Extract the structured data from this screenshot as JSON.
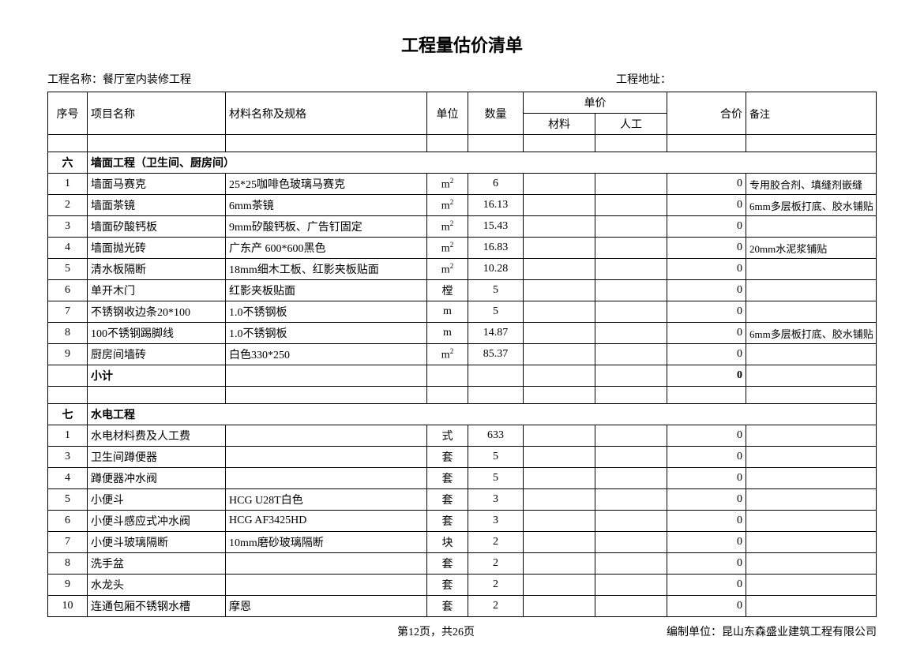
{
  "title": "工程量估价清单",
  "header": {
    "projectLabel": "工程名称：",
    "projectName": "餐厅室内装修工程",
    "addressLabel": "工程地址："
  },
  "columns": {
    "seq": "序号",
    "name": "项目名称",
    "spec": "材料名称及规格",
    "unit": "单位",
    "qty": "数量",
    "price": "单价",
    "mat": "材料",
    "lab": "人工",
    "total": "合价",
    "note": "备注"
  },
  "section6": {
    "num": "六",
    "title": "墙面工程（卫生间、厨房间）",
    "rows": [
      {
        "seq": "1",
        "name": "墙面马赛克",
        "spec": "25*25咖啡色玻璃马赛克",
        "unit": "m²",
        "qty": "6",
        "total": "0",
        "note": "专用胶合剂、填缝剂嵌缝"
      },
      {
        "seq": "2",
        "name": "墙面茶镜",
        "spec": "6mm茶镜",
        "unit": "m²",
        "qty": "16.13",
        "total": "0",
        "note": "6mm多层板打底、胶水铺贴"
      },
      {
        "seq": "3",
        "name": "墙面矽酸钙板",
        "spec": "9mm矽酸钙板、广告钉固定",
        "unit": "m²",
        "qty": "15.43",
        "total": "0",
        "note": ""
      },
      {
        "seq": "4",
        "name": "墙面抛光砖",
        "spec": "广东产 600*600黑色",
        "unit": "m²",
        "qty": "16.83",
        "total": "0",
        "note": "20mm水泥浆铺贴"
      },
      {
        "seq": "5",
        "name": "清水板隔断",
        "spec": "18mm细木工板、红影夹板贴面",
        "unit": "m²",
        "qty": "10.28",
        "total": "0",
        "note": ""
      },
      {
        "seq": "6",
        "name": "单开木门",
        "spec": "红影夹板贴面",
        "unit": "樘",
        "qty": "5",
        "total": "0",
        "note": ""
      },
      {
        "seq": "7",
        "name": "不锈钢收边条20*100",
        "spec": "1.0不锈钢板",
        "unit": "m",
        "qty": "5",
        "total": "0",
        "note": ""
      },
      {
        "seq": "8",
        "name": "100不锈钢踢脚线",
        "spec": "1.0不锈钢板",
        "unit": "m",
        "qty": "14.87",
        "total": "0",
        "note": "6mm多层板打底、胶水铺贴"
      },
      {
        "seq": "9",
        "name": "厨房间墙砖",
        "spec": "白色330*250",
        "unit": "m²",
        "qty": "85.37",
        "total": "0",
        "note": ""
      }
    ],
    "subtotalLabel": "小计",
    "subtotalValue": "0"
  },
  "section7": {
    "num": "七",
    "title": "水电工程",
    "rows": [
      {
        "seq": "1",
        "name": "水电材料费及人工费",
        "spec": "",
        "unit": "式",
        "qty": "633",
        "total": "0",
        "note": ""
      },
      {
        "seq": "3",
        "name": "卫生间蹲便器",
        "spec": "",
        "unit": "套",
        "qty": "5",
        "total": "0",
        "note": ""
      },
      {
        "seq": "4",
        "name": "蹲便器冲水阀",
        "spec": "",
        "unit": "套",
        "qty": "5",
        "total": "0",
        "note": ""
      },
      {
        "seq": "5",
        "name": "小便斗",
        "spec": "HCG U28T白色",
        "unit": "套",
        "qty": "3",
        "total": "0",
        "note": ""
      },
      {
        "seq": "6",
        "name": "小便斗感应式冲水阀",
        "spec": "HCG AF3425HD",
        "unit": "套",
        "qty": "3",
        "total": "0",
        "note": ""
      },
      {
        "seq": "7",
        "name": "小便斗玻璃隔断",
        "spec": "10mm磨砂玻璃隔断",
        "unit": "块",
        "qty": "2",
        "total": "0",
        "note": ""
      },
      {
        "seq": "8",
        "name": "洗手盆",
        "spec": "",
        "unit": "套",
        "qty": "2",
        "total": "0",
        "note": ""
      },
      {
        "seq": "9",
        "name": "水龙头",
        "spec": "",
        "unit": "套",
        "qty": "2",
        "total": "0",
        "note": ""
      },
      {
        "seq": "10",
        "name": "连通包厢不锈钢水槽",
        "spec": "摩恩",
        "unit": "套",
        "qty": "2",
        "total": "0",
        "note": ""
      }
    ]
  },
  "footer": {
    "page": "第12页，共26页",
    "companyLabel": "编制单位：",
    "company": "昆山东森盛业建筑工程有限公司"
  }
}
